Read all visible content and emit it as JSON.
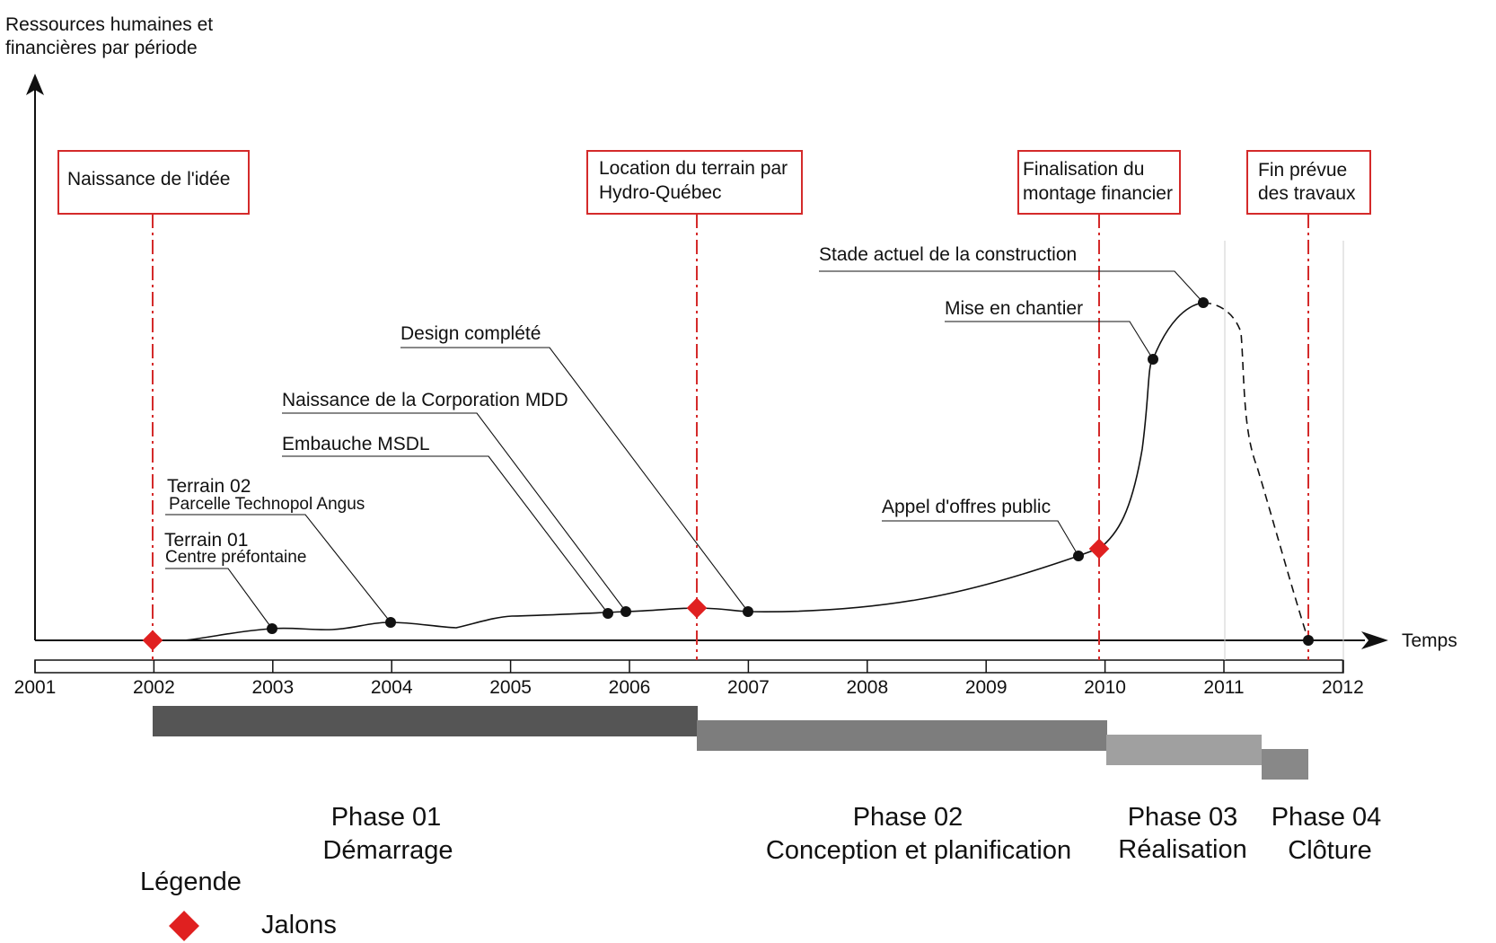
{
  "y_axis_label": [
    "Ressources humaines et",
    "financières par période"
  ],
  "x_axis_label": "Temps",
  "years": [
    "2001",
    "2002",
    "2003",
    "2004",
    "2005",
    "2006",
    "2007",
    "2008",
    "2009",
    "2010",
    "2011",
    "2012"
  ],
  "milestones": [
    {
      "lines": [
        "Naissance de l'idée"
      ]
    },
    {
      "lines": [
        "Location du terrain par",
        "Hydro-Québec"
      ]
    },
    {
      "lines": [
        "Finalisation du",
        "montage financier"
      ]
    },
    {
      "lines": [
        "Fin prévue",
        "des travaux"
      ]
    }
  ],
  "annotations": [
    {
      "id": "terrain01",
      "lines": [
        "Terrain 01",
        "Centre préfontaine"
      ]
    },
    {
      "id": "terrain02",
      "lines": [
        "Terrain 02",
        "Parcelle Technopol Angus"
      ]
    },
    {
      "id": "embauche",
      "lines": [
        "Embauche MSDL"
      ]
    },
    {
      "id": "corporation",
      "lines": [
        "Naissance de la Corporation MDD"
      ]
    },
    {
      "id": "design",
      "lines": [
        "Design complété"
      ]
    },
    {
      "id": "appel",
      "lines": [
        "Appel d'offres public"
      ]
    },
    {
      "id": "chantier",
      "lines": [
        "Mise en chantier"
      ]
    },
    {
      "id": "stade",
      "lines": [
        "Stade actuel de la construction"
      ]
    }
  ],
  "phases": [
    {
      "name": "Phase 01",
      "label": "Démarrage",
      "color": "#555555"
    },
    {
      "name": "Phase 02",
      "label": "Conception et planification",
      "color": "#7d7d7d"
    },
    {
      "name": "Phase 03",
      "label": "Réalisation",
      "color": "#a0a0a0"
    },
    {
      "name": "Phase 04",
      "label": "Clôture",
      "color": "#888888"
    }
  ],
  "legend": {
    "title": "Légende",
    "milestone_label": "Jalons",
    "milestone_color": "#e02020"
  },
  "colors": {
    "milestone_line": "#d42a2a",
    "curve": "#111111"
  }
}
